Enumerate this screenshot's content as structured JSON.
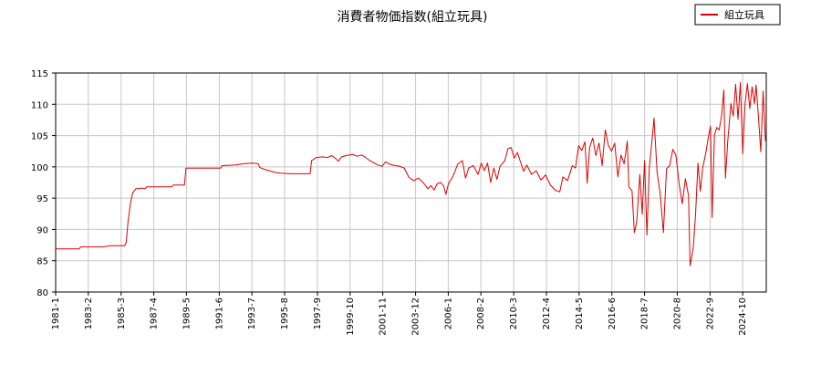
{
  "chart_data": {
    "type": "line",
    "title": "消費者物価指数(組立玩具)",
    "legend": {
      "position": "top-right"
    },
    "grid": true,
    "ylim": [
      80,
      115
    ],
    "xlim": [
      1981.0,
      2026.25
    ],
    "yticks": [
      {
        "value": 80,
        "label": "80"
      },
      {
        "value": 85,
        "label": "85"
      },
      {
        "value": 90,
        "label": "90"
      },
      {
        "value": 95,
        "label": "95"
      },
      {
        "value": 100,
        "label": "100"
      },
      {
        "value": 105,
        "label": "105"
      },
      {
        "value": 110,
        "label": "110"
      },
      {
        "value": 115,
        "label": "115"
      }
    ],
    "xticks": [
      {
        "value": 1981.0,
        "label": "1981-1"
      },
      {
        "value": 1983.08,
        "label": "1983-2"
      },
      {
        "value": 1985.17,
        "label": "1985-3"
      },
      {
        "value": 1987.25,
        "label": "1987-4"
      },
      {
        "value": 1989.33,
        "label": "1989-5"
      },
      {
        "value": 1991.42,
        "label": "1991-6"
      },
      {
        "value": 1993.5,
        "label": "1993-7"
      },
      {
        "value": 1995.58,
        "label": "1995-8"
      },
      {
        "value": 1997.67,
        "label": "1997-9"
      },
      {
        "value": 1999.75,
        "label": "1999-10"
      },
      {
        "value": 2001.83,
        "label": "2001-11"
      },
      {
        "value": 2003.92,
        "label": "2003-12"
      },
      {
        "value": 2006.0,
        "label": "2006-1"
      },
      {
        "value": 2008.08,
        "label": "2008-2"
      },
      {
        "value": 2010.17,
        "label": "2010-3"
      },
      {
        "value": 2012.25,
        "label": "2012-4"
      },
      {
        "value": 2014.33,
        "label": "2014-5"
      },
      {
        "value": 2016.42,
        "label": "2016-6"
      },
      {
        "value": 2018.5,
        "label": "2018-7"
      },
      {
        "value": 2020.58,
        "label": "2020-8"
      },
      {
        "value": 2022.67,
        "label": "2022-9"
      },
      {
        "value": 2024.75,
        "label": "2024-10"
      }
    ],
    "series": [
      {
        "name": "組立玩具",
        "color": "#dd0000",
        "points": [
          [
            1981.0,
            86.9
          ],
          [
            1982.0,
            86.9
          ],
          [
            1982.5,
            86.9
          ],
          [
            1982.6,
            87.2
          ],
          [
            1984.0,
            87.2
          ],
          [
            1984.5,
            87.4
          ],
          [
            1985.4,
            87.4
          ],
          [
            1985.5,
            88.0
          ],
          [
            1985.6,
            91.0
          ],
          [
            1985.75,
            94.0
          ],
          [
            1985.9,
            95.8
          ],
          [
            1986.1,
            96.5
          ],
          [
            1986.5,
            96.6
          ],
          [
            1986.7,
            96.5
          ],
          [
            1986.8,
            96.8
          ],
          [
            1988.4,
            96.8
          ],
          [
            1988.5,
            97.1
          ],
          [
            1989.2,
            97.1
          ],
          [
            1989.3,
            99.8
          ],
          [
            1991.5,
            99.8
          ],
          [
            1991.6,
            100.2
          ],
          [
            1992.5,
            100.3
          ],
          [
            1993.0,
            100.5
          ],
          [
            1993.5,
            100.6
          ],
          [
            1993.9,
            100.5
          ],
          [
            1994.0,
            99.9
          ],
          [
            1994.3,
            99.6
          ],
          [
            1994.7,
            99.3
          ],
          [
            1995.0,
            99.1
          ],
          [
            1995.3,
            99.0
          ],
          [
            1996.0,
            98.9
          ],
          [
            1997.2,
            98.9
          ],
          [
            1997.3,
            101.0
          ],
          [
            1997.6,
            101.5
          ],
          [
            1998.0,
            101.6
          ],
          [
            1998.3,
            101.5
          ],
          [
            1998.6,
            101.8
          ],
          [
            1998.8,
            101.4
          ],
          [
            1999.0,
            100.9
          ],
          [
            1999.2,
            101.6
          ],
          [
            1999.5,
            101.8
          ],
          [
            1999.9,
            102.0
          ],
          [
            2000.2,
            101.7
          ],
          [
            2000.5,
            101.9
          ],
          [
            2000.8,
            101.4
          ],
          [
            2001.0,
            101.0
          ],
          [
            2001.3,
            100.6
          ],
          [
            2001.5,
            100.3
          ],
          [
            2001.8,
            100.1
          ],
          [
            2002.0,
            100.8
          ],
          [
            2002.3,
            100.4
          ],
          [
            2002.6,
            100.2
          ],
          [
            2002.9,
            100.1
          ],
          [
            2003.2,
            99.8
          ],
          [
            2003.5,
            98.3
          ],
          [
            2003.8,
            97.8
          ],
          [
            2004.1,
            98.2
          ],
          [
            2004.4,
            97.5
          ],
          [
            2004.7,
            96.5
          ],
          [
            2004.9,
            97.0
          ],
          [
            2005.1,
            96.3
          ],
          [
            2005.3,
            97.3
          ],
          [
            2005.5,
            97.5
          ],
          [
            2005.7,
            97.0
          ],
          [
            2005.85,
            95.6
          ],
          [
            2006.0,
            97.2
          ],
          [
            2006.3,
            98.5
          ],
          [
            2006.6,
            100.4
          ],
          [
            2006.9,
            101.0
          ],
          [
            2007.1,
            98.2
          ],
          [
            2007.3,
            99.8
          ],
          [
            2007.6,
            100.2
          ],
          [
            2007.9,
            98.8
          ],
          [
            2008.1,
            100.6
          ],
          [
            2008.3,
            99.4
          ],
          [
            2008.5,
            100.6
          ],
          [
            2008.7,
            97.5
          ],
          [
            2008.9,
            99.8
          ],
          [
            2009.1,
            98.0
          ],
          [
            2009.3,
            100.1
          ],
          [
            2009.6,
            101.0
          ],
          [
            2009.8,
            102.9
          ],
          [
            2010.0,
            103.1
          ],
          [
            2010.2,
            101.4
          ],
          [
            2010.4,
            102.3
          ],
          [
            2010.6,
            100.8
          ],
          [
            2010.8,
            99.3
          ],
          [
            2011.0,
            100.3
          ],
          [
            2011.3,
            98.8
          ],
          [
            2011.6,
            99.4
          ],
          [
            2011.9,
            97.9
          ],
          [
            2012.2,
            98.7
          ],
          [
            2012.5,
            97.1
          ],
          [
            2012.8,
            96.3
          ],
          [
            2013.1,
            96.0
          ],
          [
            2013.3,
            98.4
          ],
          [
            2013.6,
            97.8
          ],
          [
            2013.9,
            100.2
          ],
          [
            2014.1,
            99.8
          ],
          [
            2014.3,
            103.4
          ],
          [
            2014.5,
            102.6
          ],
          [
            2014.7,
            104.0
          ],
          [
            2014.85,
            97.4
          ],
          [
            2015.0,
            103.1
          ],
          [
            2015.2,
            104.6
          ],
          [
            2015.4,
            101.8
          ],
          [
            2015.6,
            103.8
          ],
          [
            2015.8,
            100.2
          ],
          [
            2016.0,
            105.9
          ],
          [
            2016.2,
            103.4
          ],
          [
            2016.4,
            102.5
          ],
          [
            2016.6,
            103.8
          ],
          [
            2016.8,
            98.4
          ],
          [
            2017.0,
            101.9
          ],
          [
            2017.2,
            100.5
          ],
          [
            2017.4,
            104.1
          ],
          [
            2017.5,
            96.8
          ],
          [
            2017.7,
            96.2
          ],
          [
            2017.85,
            89.5
          ],
          [
            2018.0,
            91.2
          ],
          [
            2018.2,
            98.8
          ],
          [
            2018.35,
            92.4
          ],
          [
            2018.5,
            101.0
          ],
          [
            2018.65,
            89.1
          ],
          [
            2018.8,
            99.8
          ],
          [
            2019.0,
            104.9
          ],
          [
            2019.1,
            107.8
          ],
          [
            2019.3,
            99.1
          ],
          [
            2019.5,
            95.6
          ],
          [
            2019.7,
            89.5
          ],
          [
            2019.9,
            99.7
          ],
          [
            2020.1,
            100.2
          ],
          [
            2020.3,
            102.8
          ],
          [
            2020.5,
            101.8
          ],
          [
            2020.7,
            97.3
          ],
          [
            2020.9,
            94.1
          ],
          [
            2021.1,
            98.1
          ],
          [
            2021.3,
            95.4
          ],
          [
            2021.4,
            84.2
          ],
          [
            2021.6,
            87.0
          ],
          [
            2021.75,
            92.5
          ],
          [
            2021.9,
            100.6
          ],
          [
            2022.05,
            96.1
          ],
          [
            2022.2,
            99.8
          ],
          [
            2022.4,
            102.2
          ],
          [
            2022.55,
            104.6
          ],
          [
            2022.7,
            106.5
          ],
          [
            2022.8,
            91.9
          ],
          [
            2022.95,
            105.1
          ],
          [
            2023.1,
            106.3
          ],
          [
            2023.25,
            105.9
          ],
          [
            2023.4,
            108.1
          ],
          [
            2023.55,
            112.3
          ],
          [
            2023.65,
            98.2
          ],
          [
            2023.8,
            104.2
          ],
          [
            2024.0,
            110.1
          ],
          [
            2024.15,
            108.1
          ],
          [
            2024.3,
            113.2
          ],
          [
            2024.45,
            107.6
          ],
          [
            2024.6,
            113.5
          ],
          [
            2024.75,
            102.1
          ],
          [
            2024.9,
            110.1
          ],
          [
            2025.05,
            113.3
          ],
          [
            2025.2,
            109.3
          ],
          [
            2025.35,
            112.8
          ],
          [
            2025.5,
            110.1
          ],
          [
            2025.6,
            113.1
          ],
          [
            2025.75,
            108.1
          ],
          [
            2025.9,
            102.4
          ],
          [
            2026.05,
            112.1
          ],
          [
            2026.2,
            104.1
          ]
        ]
      }
    ]
  }
}
